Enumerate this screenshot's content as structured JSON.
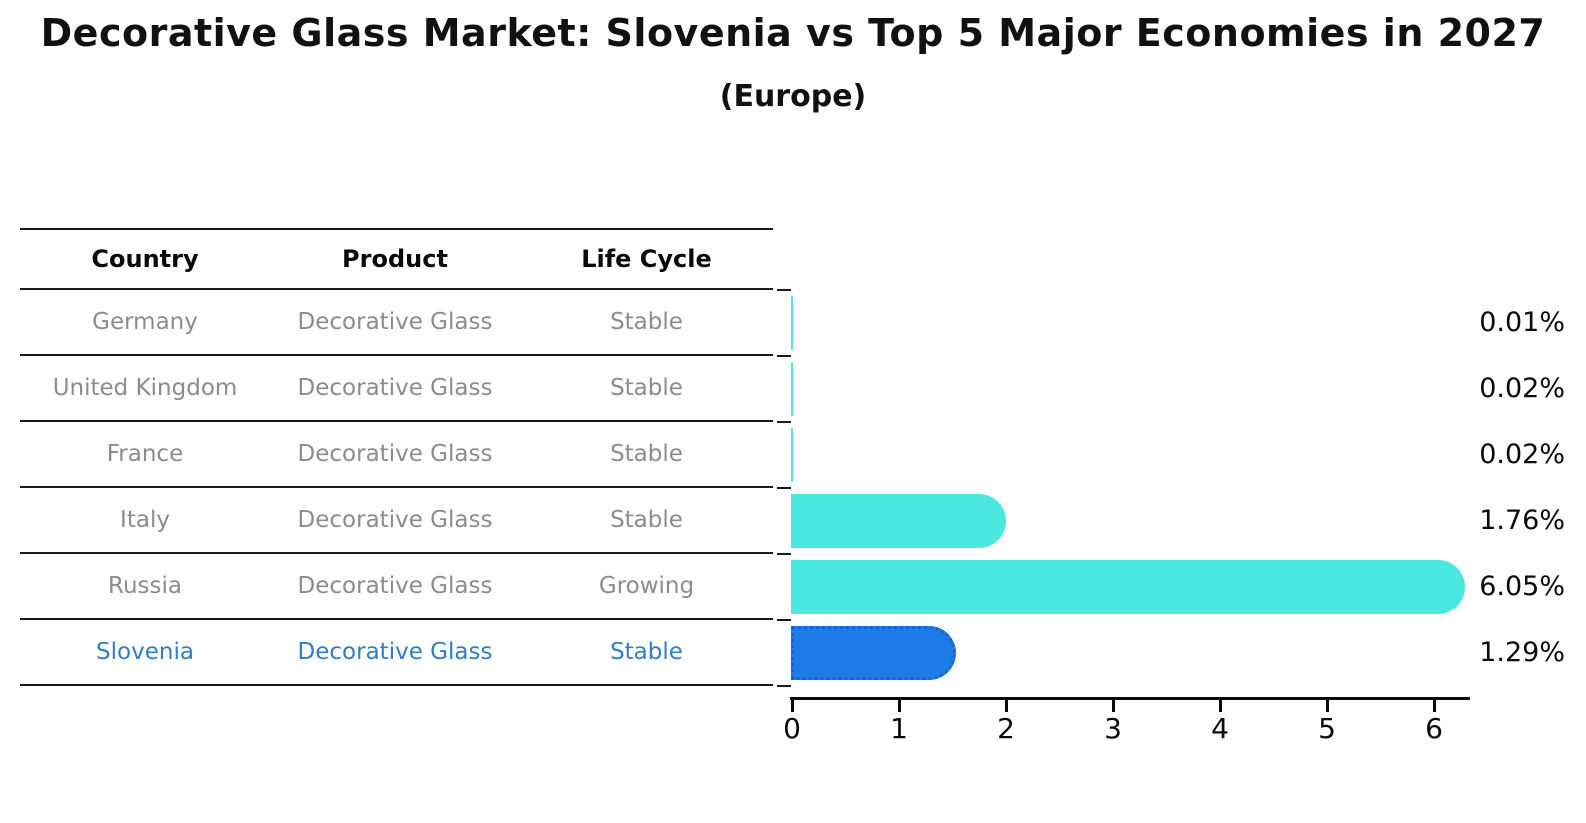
{
  "title": "Decorative Glass Market: Slovenia vs Top 5 Major Economies in 2027",
  "subtitle": "(Europe)",
  "table": {
    "columns": [
      "Country",
      "Product",
      "Life Cycle"
    ],
    "rows": [
      {
        "country": "Germany",
        "product": "Decorative Glass",
        "life_cycle": "Stable",
        "highlight": false
      },
      {
        "country": "United Kingdom",
        "product": "Decorative Glass",
        "life_cycle": "Stable",
        "highlight": false
      },
      {
        "country": "France",
        "product": "Decorative Glass",
        "life_cycle": "Stable",
        "highlight": false
      },
      {
        "country": "Italy",
        "product": "Decorative Glass",
        "life_cycle": "Stable",
        "highlight": false
      },
      {
        "country": "Russia",
        "product": "Decorative Glass",
        "life_cycle": "Growing",
        "highlight": false
      },
      {
        "country": "Slovenia",
        "product": "Decorative Glass",
        "life_cycle": "Stable",
        "highlight": true
      }
    ]
  },
  "chart_data": {
    "type": "bar",
    "orientation": "horizontal",
    "title": "Decorative Glass Market: Slovenia vs Top 5 Major Economies in 2027",
    "subtitle": "(Europe)",
    "categories": [
      "Germany",
      "United Kingdom",
      "France",
      "Italy",
      "Russia",
      "Slovenia"
    ],
    "values": [
      0.01,
      0.02,
      0.02,
      1.76,
      6.05,
      1.29
    ],
    "value_labels": [
      "0.01%",
      "0.02%",
      "0.02%",
      "1.76%",
      "6.05%",
      "1.29%"
    ],
    "x_ticks": [
      "0",
      "1",
      "2",
      "3",
      "4",
      "5",
      "6"
    ],
    "xlim": [
      0,
      6.35
    ],
    "grid": false,
    "legend": "none",
    "bar_color": "#4AE8E1",
    "highlight_index": 5,
    "highlight_color": "#1E7CE9",
    "highlight_border_color": "#1465D2",
    "highlight_border_style": "dotted"
  },
  "colors": {
    "background": "#FFFFFF",
    "table_line": "#1A1A1A",
    "header_text": "#0A0A0A",
    "row_text": "#8C8C8C",
    "highlight_text": "#2E7EC8",
    "axis": "#0A0A0A"
  }
}
